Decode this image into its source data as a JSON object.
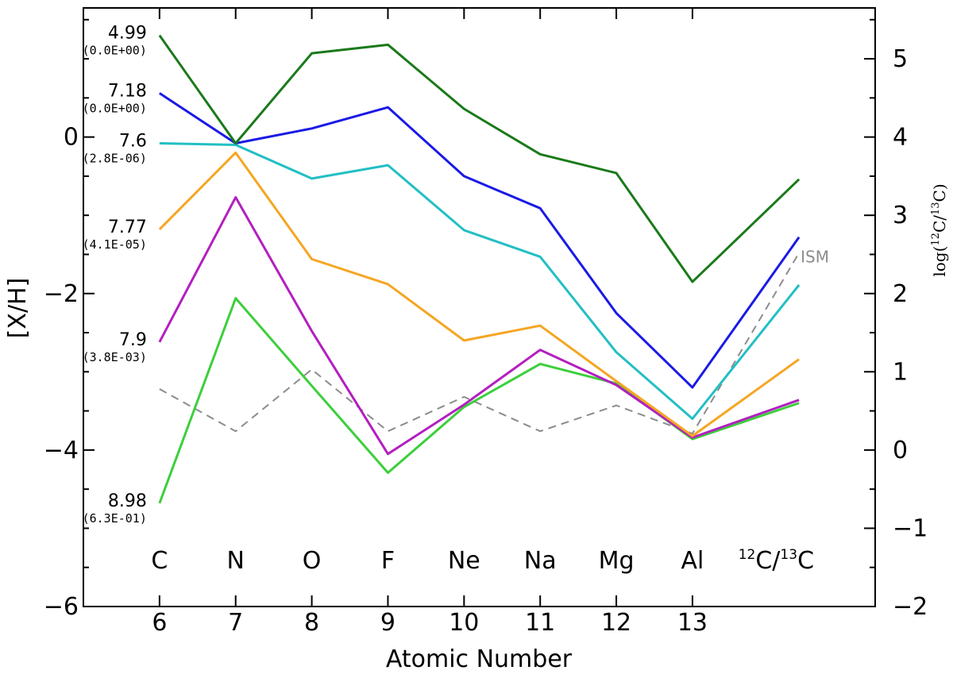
{
  "chart_data": {
    "type": "line",
    "title": "",
    "xlabel": "Atomic Number",
    "ylabel": "[X/H]",
    "ylabel_right": "log(12C/13C)",
    "ylabel_right_parts": {
      "prefix": "log(",
      "sup1": "12",
      "mid": "C/",
      "sup2": "13",
      "suffix": "C)"
    },
    "xlim": [
      5,
      15.4
    ],
    "ylim": [
      -6,
      1.65
    ],
    "ylim_right": [
      -2,
      5.65
    ],
    "x_ticks": [
      6,
      7,
      8,
      9,
      10,
      11,
      12,
      13
    ],
    "x_tick_labels": [
      "6",
      "7",
      "8",
      "9",
      "10",
      "11",
      "12",
      "13"
    ],
    "y_ticks": [
      0,
      -2,
      -4,
      -6
    ],
    "y_tick_labels": [
      "0",
      "−2",
      "−4",
      "−6"
    ],
    "y_right_ticks": [
      5,
      4,
      3,
      2,
      1,
      0,
      -1,
      -2
    ],
    "y_right_tick_labels": [
      "5",
      "4",
      "3",
      "2",
      "1",
      "0",
      "−1",
      "−2"
    ],
    "x_points": [
      6,
      7,
      8,
      9,
      10,
      11,
      12,
      13,
      14.4
    ],
    "element_labels": [
      "C",
      "N",
      "O",
      "F",
      "Ne",
      "Na",
      "Mg",
      "Al"
    ],
    "ratio_label": {
      "sup1": "12",
      "mid": "C/",
      "sup2": "13",
      "suffix": "C"
    },
    "ism_label": "ISM",
    "series": [
      {
        "name": "dark-green",
        "color": "#1a7a1a",
        "label": "4.99",
        "sublabel": "(0.0E+00)",
        "values": [
          1.3,
          -0.08,
          1.07,
          1.18,
          0.36,
          -0.22,
          -0.46,
          -1.85,
          -0.54
        ]
      },
      {
        "name": "blue",
        "color": "#1a1ae6",
        "label": "7.18",
        "sublabel": "(0.0E+00)",
        "values": [
          0.56,
          -0.08,
          0.11,
          0.38,
          -0.5,
          -0.91,
          -2.25,
          -3.2,
          -1.28
        ]
      },
      {
        "name": "cyan",
        "color": "#22bfc4",
        "label": "7.6",
        "sublabel": "(2.8E-06)",
        "values": [
          -0.08,
          -0.1,
          -0.53,
          -0.36,
          -1.19,
          -1.53,
          -2.75,
          -3.6,
          -1.89
        ]
      },
      {
        "name": "orange",
        "color": "#f5a623",
        "label": "7.77",
        "sublabel": "(4.1E-05)",
        "values": [
          -1.18,
          -0.2,
          -1.56,
          -1.88,
          -2.6,
          -2.41,
          -3.12,
          -3.82,
          -2.84
        ]
      },
      {
        "name": "magenta",
        "color": "#b31fbf",
        "label": "7.9",
        "sublabel": "(3.8E-03)",
        "values": [
          -2.62,
          -0.77,
          -2.48,
          -4.05,
          -3.42,
          -2.72,
          -3.17,
          -3.84,
          -3.36
        ]
      },
      {
        "name": "light-green",
        "color": "#3ccf3c",
        "label": "8.98",
        "sublabel": "(6.3E-01)",
        "values": [
          -4.68,
          -2.06,
          -3.18,
          -4.29,
          -3.45,
          -2.9,
          -3.15,
          -3.86,
          -3.4
        ]
      },
      {
        "name": "ism",
        "color": "#8c8c8c",
        "dashed": true,
        "label": "ISM",
        "values": [
          -3.22,
          -3.76,
          -2.97,
          -3.76,
          -3.32,
          -3.76,
          -3.43,
          -3.79,
          -1.48
        ]
      }
    ]
  }
}
